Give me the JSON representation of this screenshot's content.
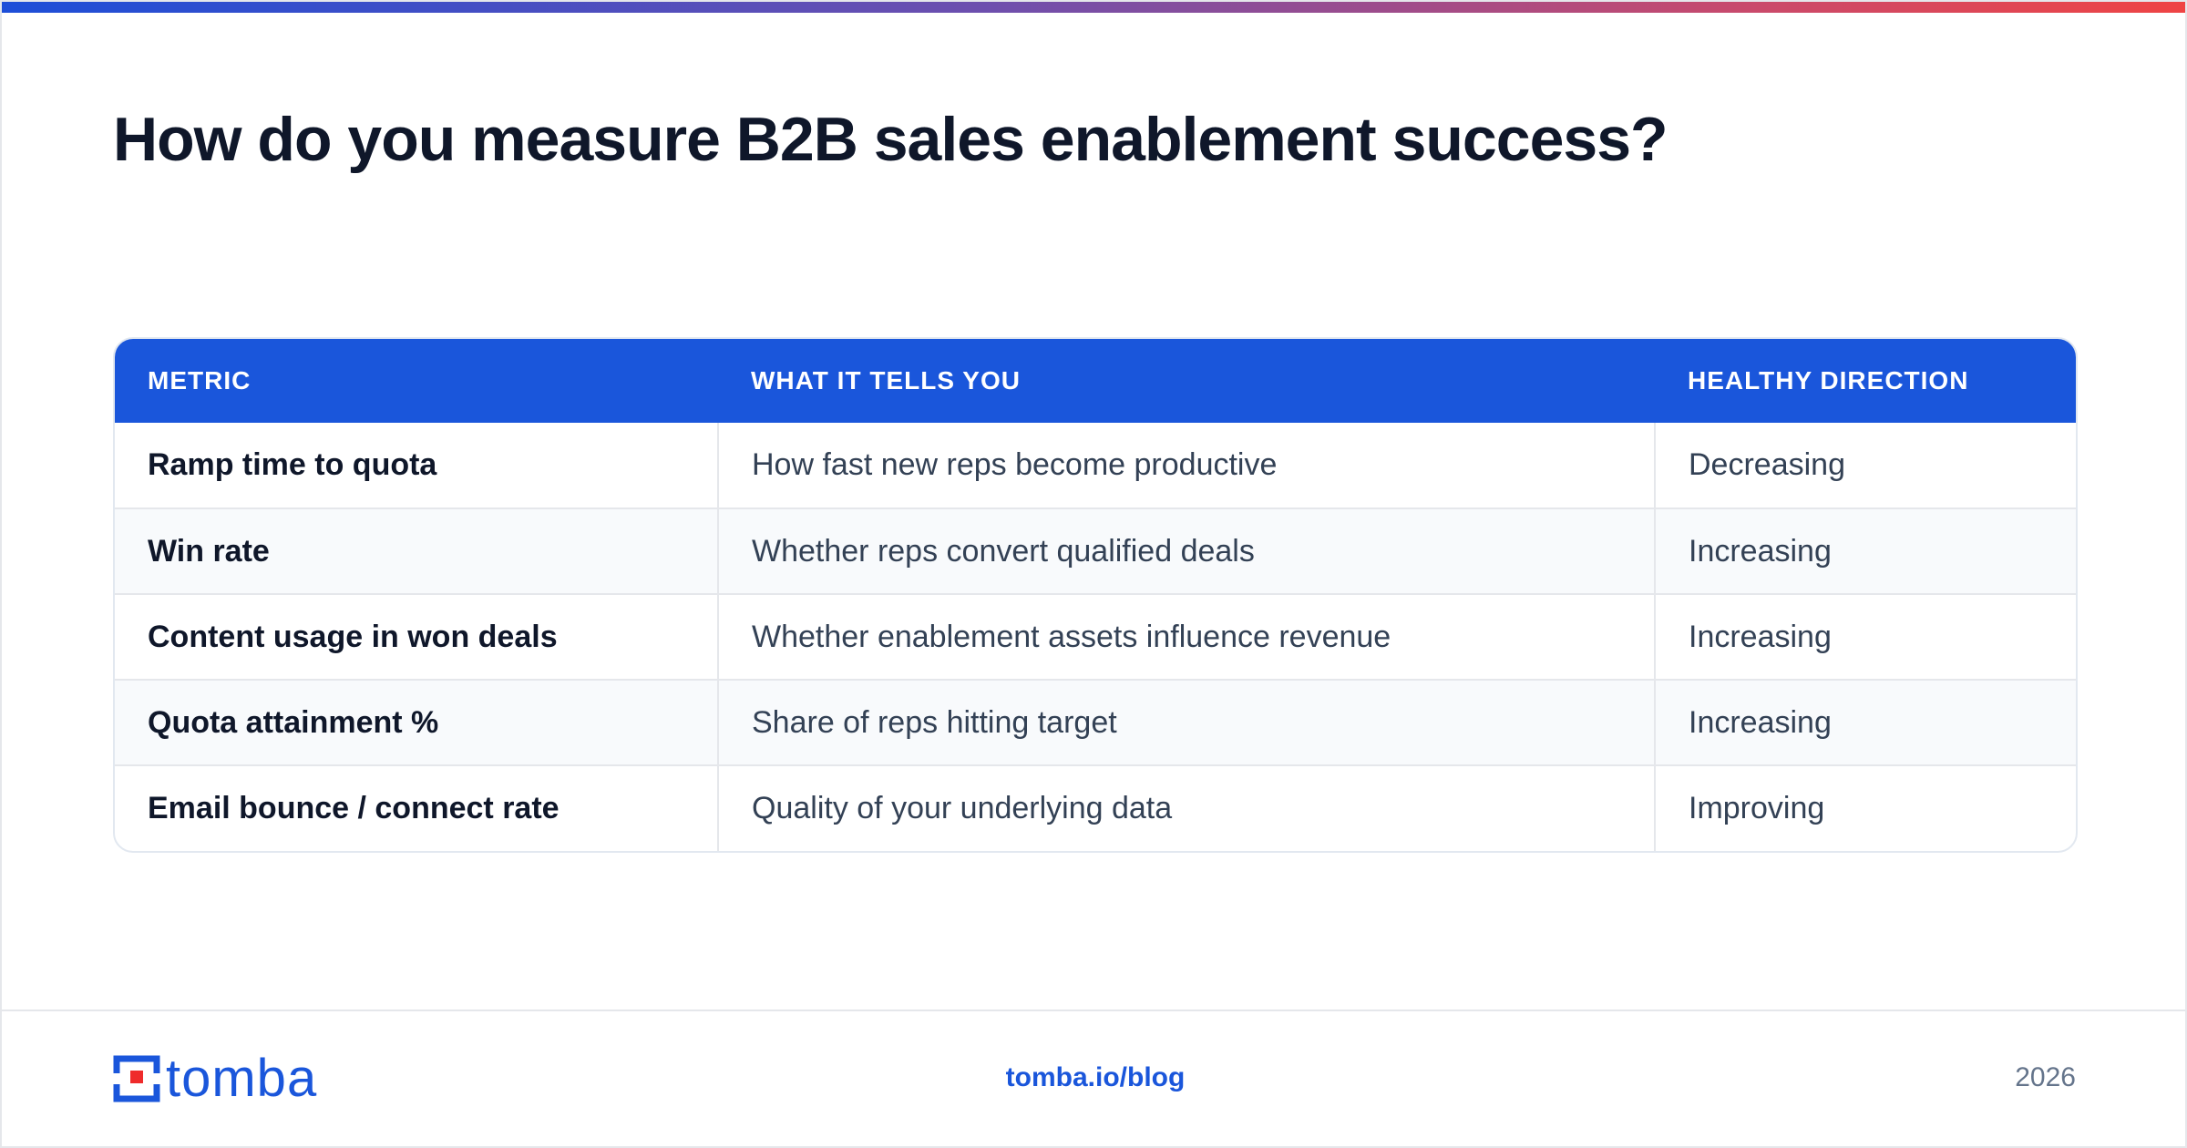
{
  "title": "How do you measure B2B sales enablement success?",
  "table": {
    "headers": [
      "METRIC",
      "WHAT IT TELLS YOU",
      "HEALTHY DIRECTION"
    ],
    "rows": [
      [
        "Ramp time to quota",
        "How fast new reps become productive",
        "Decreasing"
      ],
      [
        "Win rate",
        "Whether reps convert qualified deals",
        "Increasing"
      ],
      [
        "Content usage in won deals",
        "Whether enablement assets influence revenue",
        "Increasing"
      ],
      [
        "Quota attainment %",
        "Share of reps hitting target",
        "Increasing"
      ],
      [
        "Email bounce / connect rate",
        "Quality of your underlying data",
        "Improving"
      ]
    ]
  },
  "footer": {
    "logo_text": "tomba",
    "link": "tomba.io/blog",
    "year": "2026"
  },
  "colors": {
    "accent": "#1a56db",
    "logo_red": "#ef2b2b"
  }
}
